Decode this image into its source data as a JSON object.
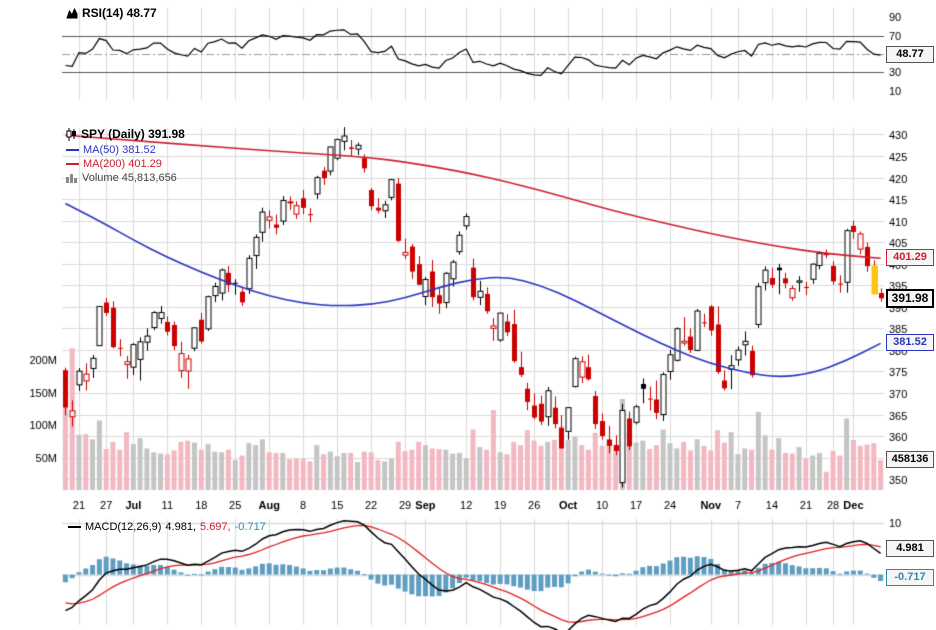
{
  "chart_data": {
    "type": "candlestick",
    "symbol": "SPY",
    "timeframe": "Daily",
    "panels": {
      "rsi": {
        "legend": "RSI(14) 48.77",
        "last_value": 48.77,
        "period": 14,
        "ticks": [
          90,
          70,
          30,
          10
        ],
        "overbought": 70,
        "oversold": 30,
        "midline": 50
      },
      "price": {
        "legend_symbol": "SPY (Daily) 391.98",
        "legend_ma50": "MA(50) 381.52",
        "legend_ma200": "MA(200) 401.29",
        "legend_volume": "Volume 45,813,656",
        "last_close": "391.98",
        "ma50_last": "381.52",
        "ma200_last": "401.29",
        "volume_last": "458136",
        "y_min": 350,
        "y_max": 430,
        "y_step": 5,
        "volume_ticks": [
          {
            "v": 200,
            "label": "200M"
          },
          {
            "v": 150,
            "label": "150M"
          },
          {
            "v": 100,
            "label": "100M"
          },
          {
            "v": 50,
            "label": "50M"
          }
        ]
      },
      "macd": {
        "legend_name": "MACD(12,26,9)",
        "macd_last": "4.981,",
        "signal_last": "5.697,",
        "hist_last": "-0.717",
        "macd_box": "4.981",
        "hist_box": "-0.717",
        "top_tick": 10,
        "params": [
          12,
          26,
          9
        ]
      }
    },
    "x_ticks": [
      {
        "i": 2,
        "label": "21",
        "bold": false
      },
      {
        "i": 6,
        "label": "27",
        "bold": false
      },
      {
        "i": 10,
        "label": "Jul",
        "bold": true
      },
      {
        "i": 15,
        "label": "11",
        "bold": false
      },
      {
        "i": 20,
        "label": "18",
        "bold": false
      },
      {
        "i": 25,
        "label": "25",
        "bold": false
      },
      {
        "i": 30,
        "label": "Aug",
        "bold": true
      },
      {
        "i": 35,
        "label": "8",
        "bold": false
      },
      {
        "i": 40,
        "label": "15",
        "bold": false
      },
      {
        "i": 45,
        "label": "22",
        "bold": false
      },
      {
        "i": 50,
        "label": "29",
        "bold": false
      },
      {
        "i": 53,
        "label": "Sep",
        "bold": true
      },
      {
        "i": 59,
        "label": "12",
        "bold": false
      },
      {
        "i": 64,
        "label": "19",
        "bold": false
      },
      {
        "i": 69,
        "label": "26",
        "bold": false
      },
      {
        "i": 74,
        "label": "Oct",
        "bold": true
      },
      {
        "i": 79,
        "label": "10",
        "bold": false
      },
      {
        "i": 84,
        "label": "17",
        "bold": false
      },
      {
        "i": 89,
        "label": "24",
        "bold": false
      },
      {
        "i": 95,
        "label": "Nov",
        "bold": true
      },
      {
        "i": 99,
        "label": "7",
        "bold": false
      },
      {
        "i": 104,
        "label": "14",
        "bold": false
      },
      {
        "i": 109,
        "label": "21",
        "bold": false
      },
      {
        "i": 113,
        "label": "28",
        "bold": false
      },
      {
        "i": 116,
        "label": "Dec",
        "bold": true
      }
    ],
    "candles": {
      "ohlc": [
        [
          375.3,
          375.9,
          364.8,
          366.65
        ],
        [
          364.5,
          368.3,
          362.2,
          365.86
        ],
        [
          371.9,
          375.8,
          370.5,
          375.07
        ],
        [
          372.8,
          376.9,
          370.6,
          374.39
        ],
        [
          375.7,
          378.8,
          373.5,
          378.06
        ],
        [
          381.0,
          390.1,
          380.9,
          390.08
        ],
        [
          391.0,
          392.1,
          387.9,
          388.59
        ],
        [
          389.8,
          391.3,
          380.4,
          380.65
        ],
        [
          380.5,
          382.5,
          378.5,
          380.34
        ],
        [
          376.6,
          378.6,
          373.3,
          377.25
        ],
        [
          376.0,
          381.6,
          374.2,
          381.24
        ],
        [
          377.8,
          382.9,
          372.9,
          381.88
        ],
        [
          381.8,
          385.0,
          379.8,
          383.22
        ],
        [
          385.2,
          389.0,
          384.6,
          388.67
        ],
        [
          387.3,
          390.2,
          386.1,
          388.67
        ],
        [
          386.5,
          387.8,
          383.4,
          384.23
        ],
        [
          385.8,
          386.6,
          379.9,
          380.89
        ],
        [
          375.2,
          381.9,
          373.5,
          379.15
        ],
        [
          375.1,
          378.9,
          371.0,
          377.91
        ],
        [
          380.4,
          385.3,
          379.7,
          385.13
        ],
        [
          387.0,
          388.6,
          381.5,
          381.96
        ],
        [
          384.9,
          392.6,
          384.4,
          392.36
        ],
        [
          392.6,
          395.6,
          391.1,
          394.72
        ],
        [
          393.2,
          398.9,
          391.5,
          398.55
        ],
        [
          397.9,
          399.5,
          393.4,
          395.09
        ],
        [
          395.6,
          396.4,
          392.8,
          395.55
        ],
        [
          393.5,
          394.3,
          390.2,
          391.04
        ],
        [
          394.2,
          402.0,
          393.0,
          401.26
        ],
        [
          401.9,
          406.8,
          398.8,
          406.13
        ],
        [
          407.3,
          413.0,
          405.1,
          411.99
        ],
        [
          410.1,
          412.4,
          408.2,
          410.86
        ],
        [
          409.1,
          411.4,
          406.8,
          408.35
        ],
        [
          409.9,
          415.7,
          409.0,
          414.67
        ],
        [
          414.2,
          415.6,
          412.5,
          414.35
        ],
        [
          411.5,
          414.5,
          410.4,
          413.47
        ],
        [
          415.2,
          417.1,
          411.5,
          412.97
        ],
        [
          411.5,
          412.9,
          409.6,
          411.25
        ],
        [
          416.2,
          420.4,
          415.0,
          419.99
        ],
        [
          421.6,
          422.5,
          418.3,
          419.85
        ],
        [
          421.5,
          427.2,
          420.5,
          427.1
        ],
        [
          424.5,
          429.0,
          424.0,
          428.84
        ],
        [
          428.4,
          431.7,
          426.3,
          429.64
        ],
        [
          427.0,
          428.7,
          424.8,
          426.65
        ],
        [
          426.6,
          428.1,
          425.2,
          427.49
        ],
        [
          424.5,
          425.4,
          421.2,
          422.14
        ],
        [
          417.1,
          417.6,
          412.4,
          413.35
        ],
        [
          413.0,
          415.2,
          411.7,
          412.34
        ],
        [
          412.3,
          414.6,
          410.6,
          413.67
        ],
        [
          415.4,
          419.7,
          414.7,
          419.52
        ],
        [
          418.6,
          419.9,
          405.0,
          405.31
        ],
        [
          402.0,
          405.8,
          401.1,
          402.63
        ],
        [
          404.0,
          404.6,
          396.5,
          398.18
        ],
        [
          399.9,
          401.8,
          395.0,
          395.13
        ],
        [
          392.4,
          396.9,
          390.4,
          396.34
        ],
        [
          398.2,
          400.9,
          390.0,
          392.24
        ],
        [
          392.7,
          394.3,
          388.4,
          390.76
        ],
        [
          391.0,
          398.1,
          389.7,
          397.78
        ],
        [
          396.5,
          400.9,
          394.7,
          400.38
        ],
        [
          402.8,
          407.5,
          402.1,
          406.6
        ],
        [
          408.8,
          411.7,
          407.9,
          410.95
        ],
        [
          399.1,
          401.2,
          391.5,
          392.24
        ],
        [
          392.2,
          396.0,
          390.4,
          393.62
        ],
        [
          393.0,
          394.5,
          388.4,
          388.96
        ],
        [
          385.0,
          387.4,
          382.1,
          385.56
        ],
        [
          382.3,
          388.6,
          381.9,
          388.55
        ],
        [
          386.6,
          388.3,
          383.2,
          384.09
        ],
        [
          386.0,
          389.3,
          377.0,
          377.39
        ],
        [
          376.0,
          379.6,
          373.7,
          374.22
        ],
        [
          371.0,
          372.4,
          366.0,
          367.95
        ],
        [
          367.1,
          369.9,
          363.9,
          364.31
        ],
        [
          367.5,
          369.4,
          362.6,
          363.38
        ],
        [
          364.5,
          371.4,
          362.4,
          370.53
        ],
        [
          366.6,
          369.2,
          361.8,
          362.79
        ],
        [
          361.9,
          364.9,
          357.0,
          357.18
        ],
        [
          361.1,
          366.7,
          359.2,
          366.61
        ],
        [
          371.5,
          378.4,
          371.3,
          377.97
        ],
        [
          373.7,
          378.5,
          372.3,
          377.26
        ],
        [
          376.0,
          378.9,
          372.9,
          373.2
        ],
        [
          369.3,
          370.5,
          361.7,
          362.79
        ],
        [
          363.5,
          365.3,
          359.2,
          360.02
        ],
        [
          359.2,
          362.4,
          356.0,
          357.74
        ],
        [
          357.9,
          360.2,
          355.6,
          356.56
        ],
        [
          349.2,
          367.5,
          348.1,
          365.97
        ],
        [
          364.1,
          365.7,
          356.8,
          357.63
        ],
        [
          363.2,
          367.3,
          362.7,
          366.82
        ],
        [
          372.1,
          373.4,
          367.6,
          370.99
        ],
        [
          368.7,
          371.5,
          365.9,
          368.5
        ],
        [
          368.5,
          372.9,
          363.9,
          365.4
        ],
        [
          365.0,
          374.8,
          363.5,
          374.29
        ],
        [
          375.0,
          380.0,
          373.1,
          378.87
        ],
        [
          377.6,
          385.2,
          377.3,
          384.92
        ],
        [
          381.6,
          387.6,
          381.0,
          382.02
        ],
        [
          383.1,
          385.0,
          379.3,
          379.98
        ],
        [
          379.9,
          389.5,
          379.7,
          389.02
        ],
        [
          386.4,
          388.4,
          385.3,
          386.21
        ],
        [
          390.1,
          390.4,
          383.3,
          384.52
        ],
        [
          385.9,
          390.1,
          374.4,
          374.87
        ],
        [
          372.9,
          375.3,
          370.6,
          371.1
        ],
        [
          375.5,
          378.8,
          370.9,
          376.35
        ],
        [
          377.7,
          380.8,
          376.3,
          379.95
        ],
        [
          381.2,
          384.3,
          378.7,
          382.0
        ],
        [
          379.8,
          381.0,
          373.6,
          374.13
        ],
        [
          385.9,
          395.5,
          385.1,
          394.69
        ],
        [
          395.6,
          399.4,
          393.8,
          398.51
        ],
        [
          396.7,
          399.1,
          394.4,
          395.12
        ],
        [
          399.1,
          400.0,
          392.9,
          398.49
        ],
        [
          396.6,
          397.9,
          394.3,
          395.45
        ],
        [
          392.1,
          395.0,
          391.4,
          394.24
        ],
        [
          395.7,
          397.1,
          393.5,
          396.03
        ],
        [
          394.6,
          395.8,
          392.7,
          394.59
        ],
        [
          396.4,
          400.1,
          395.3,
          399.9
        ],
        [
          399.6,
          402.9,
          398.7,
          402.42
        ],
        [
          402.3,
          403.3,
          401.3,
          402.33
        ],
        [
          399.5,
          400.6,
          395.1,
          395.91
        ],
        [
          395.4,
          397.3,
          393.3,
          395.23
        ],
        [
          395.7,
          408.1,
          393.3,
          407.68
        ],
        [
          408.8,
          410.0,
          405.8,
          407.38
        ],
        [
          403.4,
          407.5,
          402.2,
          406.91
        ],
        [
          403.9,
          404.9,
          398.1,
          399.44
        ],
        [
          399.1,
          400.8,
          393.3,
          393.34
        ],
        [
          393.2,
          394.3,
          391.2,
          391.98
        ]
      ],
      "volume_m": [
        130,
        218,
        85,
        86,
        78,
        107,
        63,
        74,
        62,
        89,
        71,
        80,
        64,
        58,
        56,
        55,
        61,
        74,
        76,
        73,
        62,
        71,
        59,
        58,
        62,
        46,
        53,
        72,
        69,
        78,
        58,
        57,
        57,
        47,
        48,
        48,
        44,
        69,
        55,
        59,
        52,
        57,
        57,
        43,
        59,
        58,
        46,
        44,
        48,
        74,
        60,
        62,
        74,
        69,
        64,
        63,
        62,
        56,
        57,
        49,
        93,
        66,
        62,
        123,
        58,
        55,
        74,
        69,
        92,
        76,
        68,
        74,
        77,
        98,
        77,
        82,
        69,
        62,
        88,
        68,
        78,
        70,
        140,
        89,
        73,
        76,
        63,
        69,
        93,
        72,
        64,
        74,
        61,
        78,
        68,
        61,
        92,
        73,
        89,
        55,
        64,
        62,
        120,
        84,
        62,
        80,
        57,
        56,
        66,
        49,
        53,
        57,
        28,
        60,
        53,
        110,
        77,
        68,
        70,
        72,
        46
      ]
    },
    "ma50_keypoints": [
      [
        0,
        414
      ],
      [
        5,
        410
      ],
      [
        10,
        405.5
      ],
      [
        15,
        401.5
      ],
      [
        20,
        398
      ],
      [
        25,
        395
      ],
      [
        30,
        392.5
      ],
      [
        35,
        390.8
      ],
      [
        40,
        390.2
      ],
      [
        45,
        390.5
      ],
      [
        50,
        392
      ],
      [
        55,
        394.5
      ],
      [
        60,
        396.5
      ],
      [
        65,
        397
      ],
      [
        70,
        395
      ],
      [
        75,
        391.5
      ],
      [
        80,
        387.5
      ],
      [
        85,
        383.5
      ],
      [
        90,
        379.8
      ],
      [
        95,
        376.8
      ],
      [
        100,
        374.8
      ],
      [
        105,
        373.6
      ],
      [
        110,
        374.6
      ],
      [
        115,
        377.5
      ],
      [
        120,
        381.52
      ]
    ],
    "ma200_keypoints": [
      [
        0,
        429.8
      ],
      [
        10,
        428.6
      ],
      [
        20,
        427.4
      ],
      [
        30,
        426.2
      ],
      [
        40,
        425.2
      ],
      [
        45,
        424.6
      ],
      [
        50,
        423.6
      ],
      [
        55,
        422.3
      ],
      [
        60,
        420.8
      ],
      [
        65,
        419
      ],
      [
        70,
        417
      ],
      [
        75,
        414.8
      ],
      [
        80,
        412.6
      ],
      [
        85,
        410.6
      ],
      [
        90,
        408.8
      ],
      [
        95,
        407
      ],
      [
        100,
        405.4
      ],
      [
        105,
        404
      ],
      [
        110,
        402.8
      ],
      [
        115,
        401.9
      ],
      [
        120,
        401.29
      ]
    ],
    "highlight_index": 119,
    "colors": {
      "up": "#000000",
      "down": "#cc0000",
      "vol_up": "#c5c5c5",
      "vol_down": "#f3b8c1",
      "ma50": "#2a35c0",
      "ma200": "#cc2030",
      "rsi_line": "#000000",
      "macd_line": "#000000",
      "signal_line": "#dd2222",
      "hist_fill": "#5f9ec0",
      "grid": "#dcdcdc",
      "highlight": "#ffc20e"
    }
  }
}
